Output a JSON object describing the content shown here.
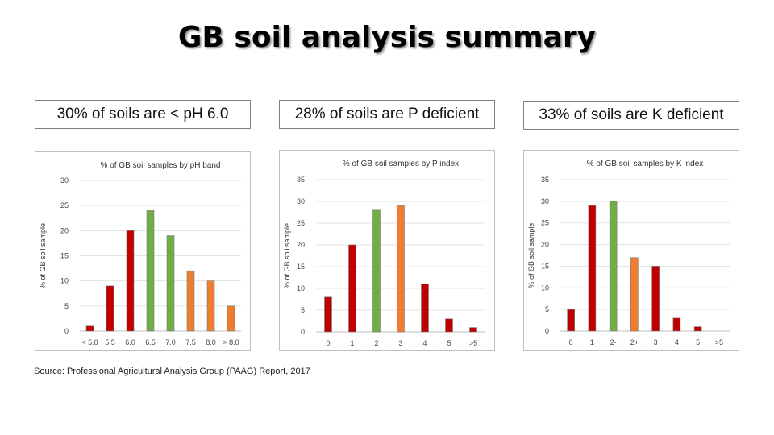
{
  "title": "GB soil analysis summary",
  "headlines": [
    "30% of soils are < pH 6.0",
    "28% of soils are P deficient",
    "33% of soils are K deficient"
  ],
  "source": "Source: Professional Agricultural Analysis Group (PAAG) Report, 2017",
  "colors": {
    "red": "#c00000",
    "green": "#70ad47",
    "orange": "#ed7d31"
  },
  "chart_data": [
    {
      "type": "bar",
      "title": "% of GB soil samples by pH band",
      "ylabel": "% of GB soil sample",
      "xlabel": "",
      "categories": [
        "< 5.0",
        "5.5",
        "6.0",
        "6.5",
        "7.0",
        "7.5",
        "8.0",
        "> 8.0"
      ],
      "values": [
        1,
        9,
        20,
        24,
        19,
        12,
        10,
        5
      ],
      "bar_colors": [
        "red",
        "red",
        "red",
        "green",
        "green",
        "orange",
        "orange",
        "orange"
      ],
      "ylim": [
        0,
        30
      ],
      "yticks": [
        0,
        5,
        10,
        15,
        20,
        25,
        30
      ],
      "grid": true,
      "legend": "none"
    },
    {
      "type": "bar",
      "title": "% of GB soil samples by P index",
      "ylabel": "% of GB soil sample",
      "xlabel": "",
      "categories": [
        "0",
        "1",
        "2",
        "3",
        "4",
        "5",
        ">5"
      ],
      "values": [
        8,
        20,
        28,
        29,
        11,
        3,
        1
      ],
      "bar_colors": [
        "red",
        "red",
        "green",
        "orange",
        "red",
        "red",
        "red"
      ],
      "ylim": [
        0,
        35
      ],
      "yticks": [
        0,
        5,
        10,
        15,
        20,
        25,
        30,
        35
      ],
      "grid": true,
      "legend": "none"
    },
    {
      "type": "bar",
      "title": "% of GB soil samples by K index",
      "ylabel": "% of GB soil sample",
      "xlabel": "",
      "categories": [
        "0",
        "1",
        "2-",
        "2+",
        "3",
        "4",
        "5",
        ">5"
      ],
      "values": [
        5,
        29,
        30,
        17,
        15,
        3,
        1,
        0
      ],
      "bar_colors": [
        "red",
        "red",
        "green",
        "orange",
        "red",
        "red",
        "red",
        "red"
      ],
      "ylim": [
        0,
        35
      ],
      "yticks": [
        0,
        5,
        10,
        15,
        20,
        25,
        30,
        35
      ],
      "grid": true,
      "legend": "none"
    }
  ]
}
